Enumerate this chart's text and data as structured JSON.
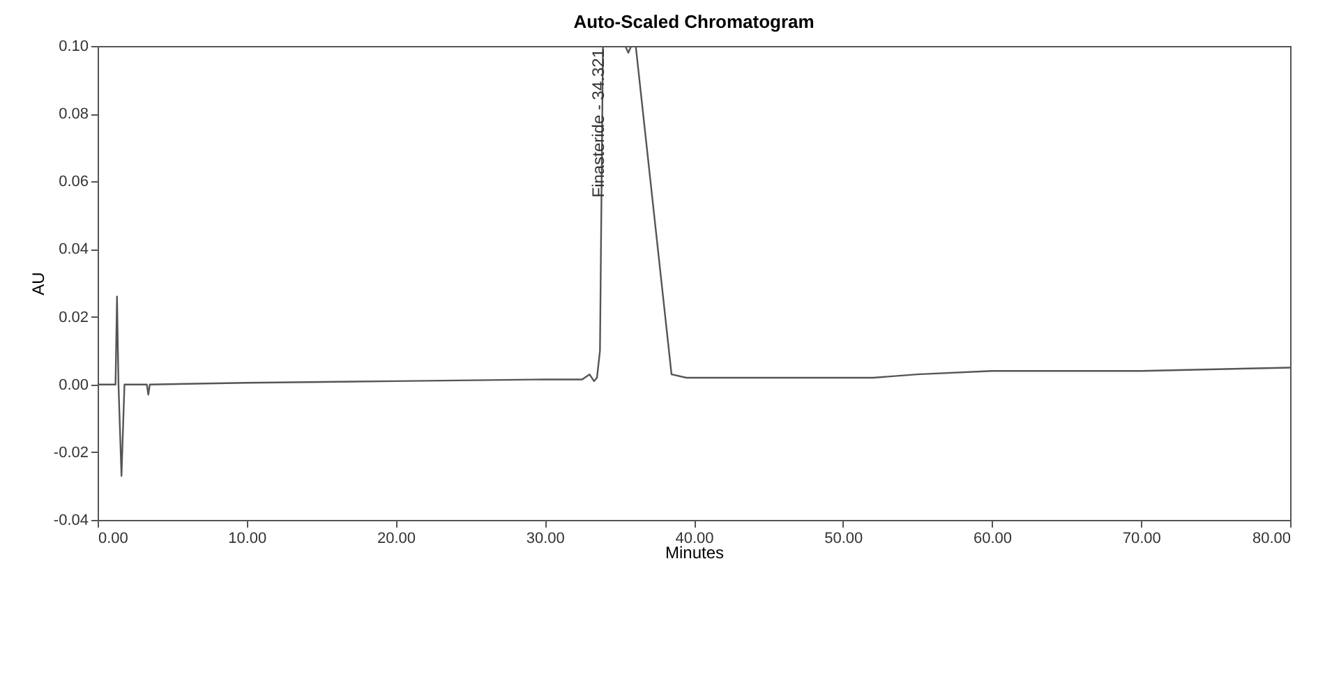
{
  "chart_data": {
    "type": "line",
    "title": "Auto-Scaled Chromatogram",
    "xlabel": "Minutes",
    "ylabel": "AU",
    "x": [
      0,
      1.2,
      1.3,
      1.4,
      1.6,
      1.8,
      3.3,
      3.4,
      3.5,
      10,
      20,
      30,
      32.5,
      33.0,
      33.3,
      33.5,
      33.7,
      33.9,
      35.4,
      35.6,
      35.8,
      36.1,
      38.5,
      39.5,
      45,
      52,
      55,
      60,
      70,
      80
    ],
    "series": [
      {
        "color": "#555555",
        "values": [
          0,
          0,
          0.026,
          0,
          -0.027,
          0,
          0,
          -0.003,
          0,
          0.0005,
          0.001,
          0.0015,
          0.0015,
          0.003,
          0.001,
          0.002,
          0.01,
          0.1,
          0.1,
          0.098,
          0.1,
          0.1,
          0.003,
          0.002,
          0.002,
          0.002,
          0.003,
          0.004,
          0.004,
          0.005
        ]
      }
    ],
    "annotations": [
      {
        "text": "Finasteride - 34.321",
        "x": 34.321,
        "y": 0.1
      }
    ],
    "xlim": [
      0,
      80
    ],
    "xticks": [
      {
        "value": 0,
        "label": "0.00"
      },
      {
        "value": 10,
        "label": "10.00"
      },
      {
        "value": 20,
        "label": "20.00"
      },
      {
        "value": 30,
        "label": "30.00"
      },
      {
        "value": 40,
        "label": "40.00"
      },
      {
        "value": 50,
        "label": "50.00"
      },
      {
        "value": 60,
        "label": "60.00"
      },
      {
        "value": 70,
        "label": "70.00"
      },
      {
        "value": 80,
        "label": "80.00"
      }
    ],
    "ylim": [
      -0.04,
      0.1
    ],
    "yticks": [
      {
        "value": -0.04,
        "label": "-0.04"
      },
      {
        "value": -0.02,
        "label": "-0.02"
      },
      {
        "value": 0,
        "label": "0.00"
      },
      {
        "value": 0.02,
        "label": "0.02"
      },
      {
        "value": 0.04,
        "label": "0.04"
      },
      {
        "value": 0.06,
        "label": "0.06"
      },
      {
        "value": 0.08,
        "label": "0.08"
      },
      {
        "value": 0.1,
        "label": "0.10"
      }
    ],
    "grid": false,
    "marker": "none",
    "line_style": "solid"
  }
}
